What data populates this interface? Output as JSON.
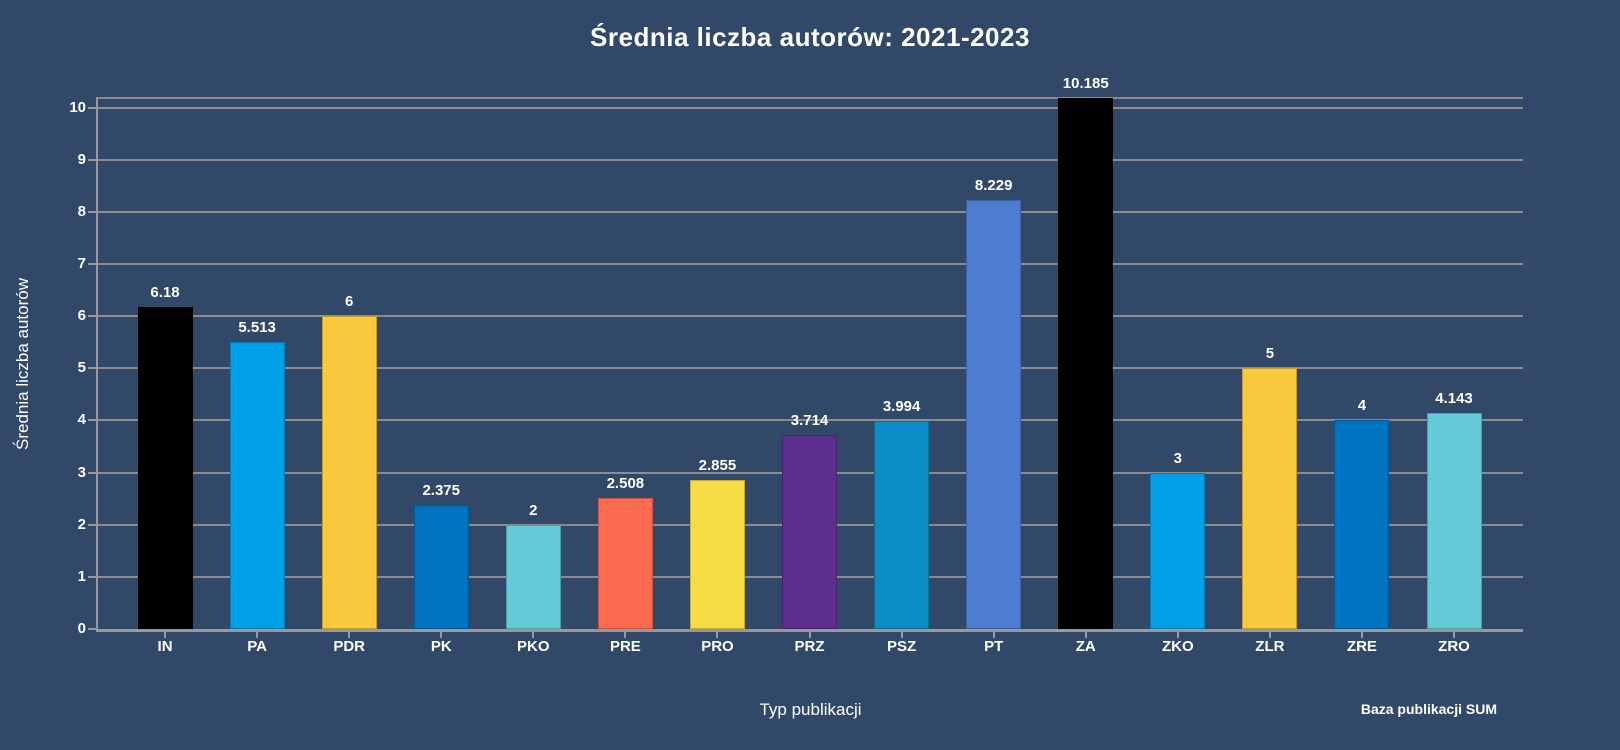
{
  "footer": "Baza publikacji SUM",
  "chart_data": {
    "type": "bar",
    "title": "Średnia liczba autorów: 2021-2023",
    "xlabel": "Typ publikacji",
    "ylabel": "Średnia liczba autorów",
    "categories": [
      "IN",
      "PA",
      "PDR",
      "PK",
      "PKO",
      "PRE",
      "PRO",
      "PRZ",
      "PSZ",
      "PT",
      "ZA",
      "ZKO",
      "ZLR",
      "ZRE",
      "ZRO"
    ],
    "values": [
      6.18,
      5.513,
      6,
      2.375,
      2,
      2.508,
      2.855,
      3.714,
      3.994,
      8.229,
      10.185,
      3,
      5,
      4,
      4.143
    ],
    "value_labels": [
      "6.18",
      "5.513",
      "6",
      "2.375",
      "2",
      "2.508",
      "2.855",
      "3.714",
      "3.994",
      "8.229",
      "10.185",
      "3",
      "5",
      "4",
      "4.143"
    ],
    "bar_colors": [
      "#000000",
      "#009FE8",
      "#FBC93D",
      "#0073C0",
      "#63CBD8",
      "#FB6C50",
      "#F6DD46",
      "#5C2E90",
      "#0C8CC4",
      "#4C7DD0",
      "#000000",
      "#009FE8",
      "#FBC93D",
      "#0073C0",
      "#63CBD8"
    ],
    "ylim": [
      0,
      10.185
    ],
    "yticks": [
      0,
      1,
      2,
      3,
      4,
      5,
      6,
      7,
      8,
      9,
      10
    ],
    "grid": true,
    "legend": "none",
    "background_color": "#324869",
    "grid_color": "#8C8C8C",
    "text_color": "#FFFFFF"
  }
}
